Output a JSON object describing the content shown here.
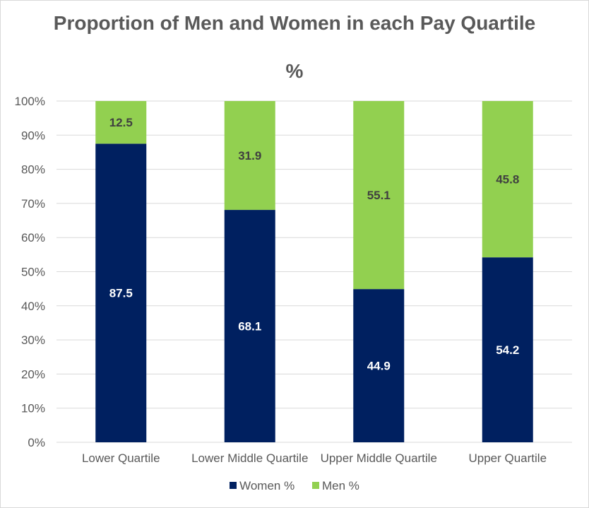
{
  "chart_data": {
    "type": "bar",
    "stacked": true,
    "title": "Proportion of Men and Women in each Pay Quartile",
    "subtitle": "%",
    "categories": [
      "Lower Quartile",
      "Lower Middle Quartile",
      "Upper Middle Quartile",
      "Upper Quartile"
    ],
    "series": [
      {
        "name": "Women %",
        "values": [
          87.5,
          68.1,
          44.9,
          54.2
        ],
        "color": "#002060",
        "label_color": "#ffffff"
      },
      {
        "name": "Men %",
        "values": [
          12.5,
          31.9,
          55.1,
          45.8
        ],
        "color": "#92D050",
        "label_color": "#404040"
      }
    ],
    "ylim": [
      0,
      100
    ],
    "yticks": [
      "0%",
      "10%",
      "20%",
      "30%",
      "40%",
      "50%",
      "60%",
      "70%",
      "80%",
      "90%",
      "100%"
    ],
    "grid": true,
    "legend": "bottom"
  }
}
